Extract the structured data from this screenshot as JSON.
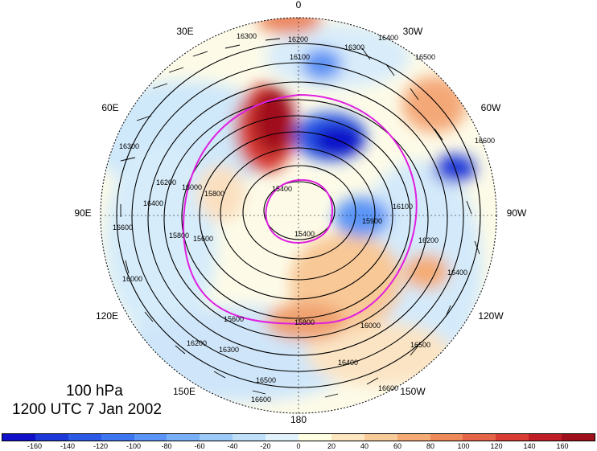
{
  "title": {
    "level": "100 hPa",
    "time": "1200 UTC 7 Jan 2002"
  },
  "longitude_labels": {
    "top": "0",
    "top_left": "30E",
    "top_right": "30W",
    "upper_left": "60E",
    "upper_right": "60W",
    "left": "90E",
    "right": "90W",
    "lower_left": "120E",
    "lower_right": "120W",
    "bottom_left": "150E",
    "bottom_right": "150W",
    "bottom": "180"
  },
  "contour_labels": {
    "c1": "16300",
    "c2": "16200",
    "c3": "16100",
    "c4": "16300",
    "c5": "16400",
    "c6": "16500",
    "c7": "16600",
    "c8": "16300",
    "c9": "16600",
    "c10": "16400",
    "c11": "16200",
    "c12": "16000",
    "c13": "15800",
    "c14": "15400",
    "c15": "15600",
    "c16": "15800",
    "c17": "16000",
    "c18": "16200",
    "c19": "16400",
    "c20": "16500",
    "c21": "16600",
    "c22": "16500",
    "c23": "16600",
    "c24": "16100",
    "c25": "15900",
    "c26": "15600",
    "c27": "15400",
    "c28": "16200",
    "c29": "16400",
    "c30": "16300",
    "c31": "16000",
    "c32": "15800"
  },
  "colorbar": {
    "colors": [
      "#1010c8",
      "#1c38d8",
      "#2c5ae6",
      "#3c76f0",
      "#5a94f6",
      "#78b0f8",
      "#9ccaf8",
      "#c0e0fa",
      "#e2f2fc",
      "#fefee0",
      "#fce6c0",
      "#f8cc98",
      "#f4ac74",
      "#ee8a5a",
      "#e66448",
      "#d83c34",
      "#c01e26",
      "#a0101c"
    ],
    "labels": [
      "-160",
      "-140",
      "-120",
      "-100",
      "-80",
      "-60",
      "-40",
      "-20",
      "0",
      "20",
      "40",
      "60",
      "80",
      "100",
      "120",
      "140",
      "160"
    ]
  }
}
